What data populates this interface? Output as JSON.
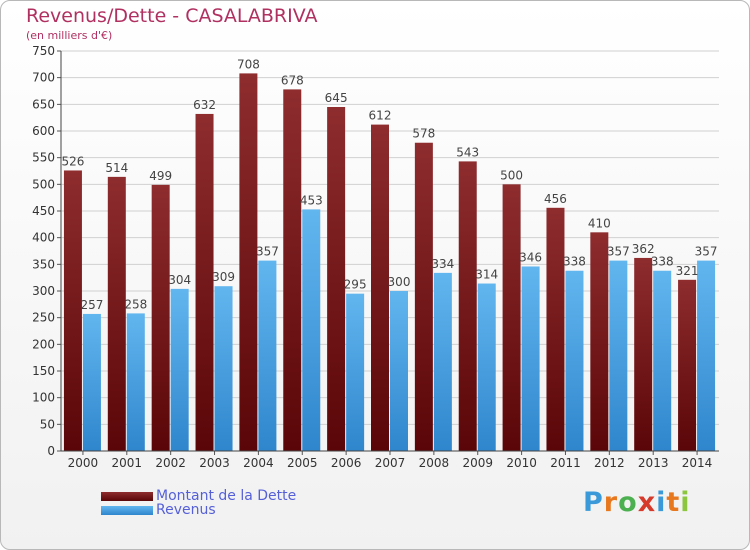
{
  "title": "Revenus/Dette - CASALABRIVA",
  "subtitle": "(en milliers d'€)",
  "legend": [
    {
      "label": "Montant de la Dette",
      "color": "#7a1518"
    },
    {
      "label": "Revenus",
      "color": "#4ea7e6"
    }
  ],
  "logo": {
    "letters": [
      "P",
      "r",
      "o",
      "x",
      "i",
      "t",
      "i"
    ],
    "colors": [
      "#3a9ad9",
      "#e8781e",
      "#4caf50",
      "#d63a2a",
      "#3a9ad9",
      "#e8781e",
      "#8cc63f"
    ]
  },
  "colors": {
    "dette_top": "#8e2c2e",
    "dette_bottom": "#5a0608",
    "revenus_top": "#62b6ef",
    "revenus_bottom": "#2f86cc",
    "grid": "#d0d0d0"
  },
  "chart_data": {
    "type": "bar",
    "title": "Revenus/Dette - CASALABRIVA",
    "subtitle": "(en milliers d'€)",
    "categories": [
      "2000",
      "2001",
      "2002",
      "2003",
      "2004",
      "2005",
      "2006",
      "2007",
      "2008",
      "2009",
      "2010",
      "2011",
      "2012",
      "2013",
      "2014"
    ],
    "series": [
      {
        "name": "Montant de la Dette",
        "values": [
          526,
          514,
          499,
          632,
          708,
          678,
          645,
          612,
          578,
          543,
          500,
          456,
          410,
          362,
          321
        ]
      },
      {
        "name": "Revenus",
        "values": [
          257,
          258,
          304,
          309,
          357,
          453,
          295,
          300,
          334,
          314,
          346,
          338,
          357,
          338,
          357
        ]
      }
    ],
    "value_labels": [
      [
        "526",
        "514",
        "499",
        "632",
        "708",
        "678",
        "645",
        "612",
        "578",
        "543",
        "500",
        "456",
        "410",
        "362",
        "321"
      ],
      [
        "257",
        "258",
        "304",
        "309",
        "357",
        "453",
        "295",
        "300",
        "334",
        "314",
        "346",
        "338",
        "357",
        "338",
        "357"
      ]
    ],
    "yticks": [
      "0",
      "50",
      "100",
      "150",
      "200",
      "250",
      "300",
      "350",
      "400",
      "450",
      "500",
      "550",
      "600",
      "650",
      "700",
      "750"
    ],
    "ylim": [
      0,
      750
    ],
    "grid": true,
    "legend_position": "bottom-left"
  }
}
